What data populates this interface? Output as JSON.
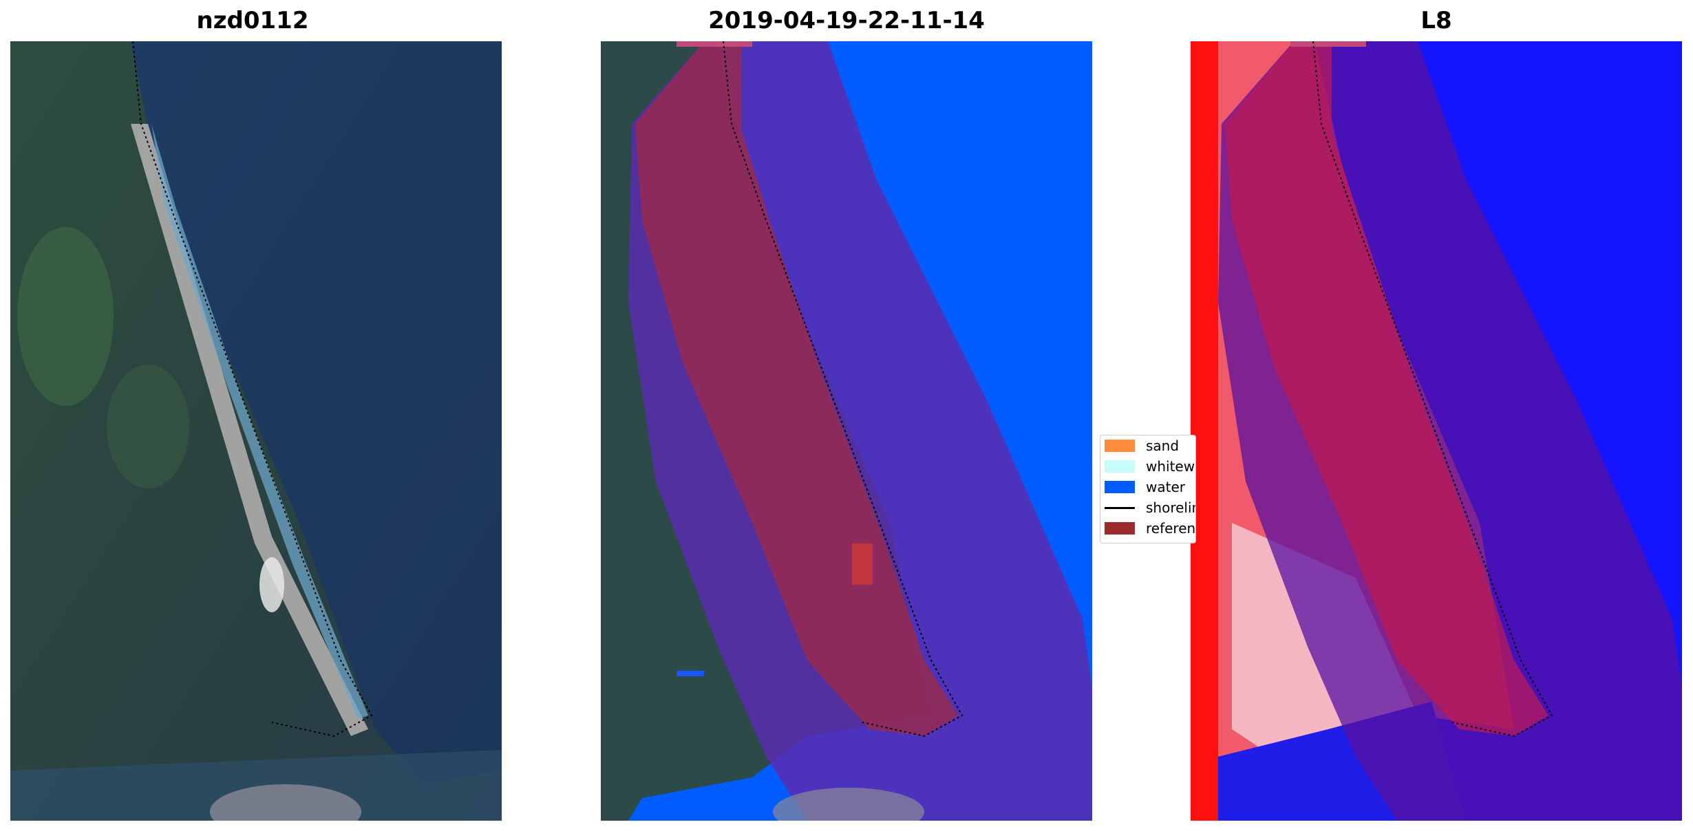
{
  "panels": [
    {
      "title": "nzd0112"
    },
    {
      "title": "2019-04-19-22-11-14"
    },
    {
      "title": "L8"
    }
  ],
  "legend": {
    "items": [
      {
        "label": "sand",
        "color": "#ff8c3a",
        "kind": "patch"
      },
      {
        "label": "whitewater",
        "color": "#c8fbfb",
        "kind": "patch"
      },
      {
        "label": "water",
        "color": "#005cff",
        "kind": "patch"
      },
      {
        "label": "shoreline",
        "color": "#000000",
        "kind": "line"
      },
      {
        "label": "reference",
        "color": "#9b2b2b",
        "kind": "patch"
      }
    ]
  },
  "colors": {
    "ocean": "#1d3a62",
    "land": "#2c4a3e",
    "beach": "#b9b6b2",
    "water_class": "#005cff",
    "buffer_overlay": "#a62a5a",
    "water_index_blue": "#1414ff",
    "water_index_red": "#ff1a1a"
  }
}
